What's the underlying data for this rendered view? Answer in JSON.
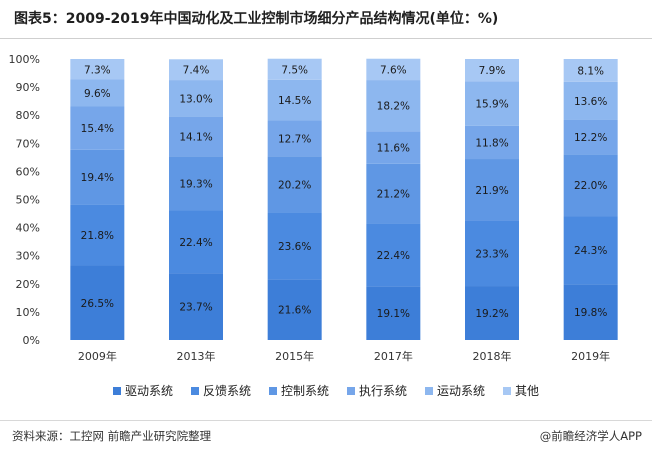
{
  "header": {
    "title": "图表5：2009-2019年中国动化及工业控制市场细分产品结构情况(单位：%)"
  },
  "footer": {
    "source": "资料来源：工控网 前瞻产业研究院整理",
    "credit": "@前瞻经济学人APP"
  },
  "colors": {
    "series": [
      "#3d7ed8",
      "#4b8ae0",
      "#5f97e4",
      "#76a6ea",
      "#8db7ef",
      "#a7c8f4"
    ]
  },
  "chart_data": {
    "type": "bar",
    "stacked": true,
    "categories": [
      "2009年",
      "2013年",
      "2015年",
      "2017年",
      "2018年",
      "2019年"
    ],
    "series": [
      {
        "name": "驱动系统",
        "values": [
          26.5,
          23.7,
          21.6,
          19.1,
          19.2,
          19.8
        ]
      },
      {
        "name": "反馈系统",
        "values": [
          21.8,
          22.4,
          23.6,
          22.4,
          23.3,
          24.3
        ]
      },
      {
        "name": "控制系统",
        "values": [
          19.4,
          19.3,
          20.2,
          21.2,
          21.9,
          22.0
        ]
      },
      {
        "name": "执行系统",
        "values": [
          15.4,
          14.1,
          12.7,
          11.6,
          11.8,
          12.2
        ]
      },
      {
        "name": "运动系统",
        "values": [
          9.6,
          13.0,
          14.5,
          18.2,
          15.9,
          13.6
        ]
      },
      {
        "name": "其他",
        "values": [
          7.3,
          7.4,
          7.5,
          7.6,
          7.9,
          8.1
        ]
      }
    ],
    "ylim": [
      0,
      100
    ],
    "ytick_labels": [
      "0%",
      "10%",
      "20%",
      "30%",
      "40%",
      "50%",
      "60%",
      "70%",
      "80%",
      "90%",
      "100%"
    ],
    "legend": "bottom",
    "grid": false
  }
}
